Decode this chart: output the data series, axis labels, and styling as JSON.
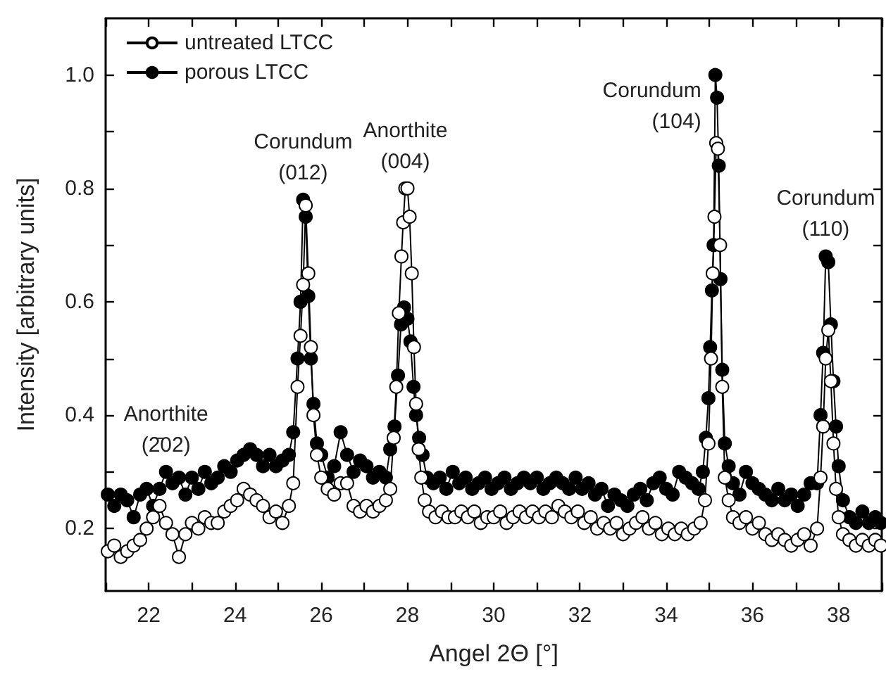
{
  "chart_data": {
    "type": "line",
    "xlabel": "Angel 2Θ [°]",
    "ylabel": "Intensity [arbitrary units]",
    "xlim": [
      21,
      39
    ],
    "ylim": [
      0.09,
      1.1
    ],
    "xticks": [
      {
        "value": 21,
        "label": null
      },
      22,
      {
        "value": 23,
        "label": null
      },
      24,
      {
        "value": 25,
        "label": null
      },
      26,
      {
        "value": 27,
        "label": null
      },
      28,
      {
        "value": 29,
        "label": null
      },
      30,
      {
        "value": 31,
        "label": null
      },
      32,
      {
        "value": 33,
        "label": null
      },
      34,
      {
        "value": 35,
        "label": null
      },
      36,
      {
        "value": 37,
        "label": null
      },
      38,
      {
        "value": 39,
        "label": null
      }
    ],
    "yticks": [
      0.2,
      {
        "value": 0.3,
        "label": null
      },
      0.4,
      {
        "value": 0.5,
        "label": null
      },
      0.6,
      {
        "value": 0.7,
        "label": null
      },
      0.8,
      {
        "value": 0.9,
        "label": null
      },
      {
        "value": 1.0,
        "label": "1.0"
      }
    ],
    "grid": false,
    "legend": "top left",
    "marker": "circle",
    "line_style": "solid",
    "annotations": [
      {
        "text": "Anorthite\n(2̄02)",
        "x": 22.4,
        "y": 0.3
      },
      {
        "text": "Corundum\n(012)",
        "x": 25.58,
        "y": 0.78
      },
      {
        "text": "Anorthite\n(004)",
        "x": 27.95,
        "y": 0.8
      },
      {
        "text": "Corundum\n(104)",
        "x": 35.14,
        "y": 1.0
      },
      {
        "text": "Corundum\n(110)",
        "x": 37.7,
        "y": 0.68
      }
    ],
    "series": [
      {
        "name": "untreated LTCC",
        "color": "#000000",
        "x": [
          21.05,
          21.2,
          21.35,
          21.5,
          21.65,
          21.8,
          21.95,
          22.1,
          22.25,
          22.4,
          22.55,
          22.7,
          22.85,
          23.0,
          23.15,
          23.3,
          23.45,
          23.6,
          23.75,
          23.9,
          24.05,
          24.2,
          24.35,
          24.5,
          24.65,
          24.8,
          24.95,
          25.1,
          25.25,
          25.35,
          25.45,
          25.52,
          25.58,
          25.64,
          25.7,
          25.76,
          25.82,
          25.9,
          26.0,
          26.15,
          26.3,
          26.45,
          26.6,
          26.75,
          26.9,
          27.05,
          27.2,
          27.35,
          27.5,
          27.6,
          27.68,
          27.74,
          27.8,
          27.86,
          27.9,
          27.95,
          28.0,
          28.05,
          28.1,
          28.15,
          28.2,
          28.26,
          28.32,
          28.4,
          28.5,
          28.65,
          28.8,
          28.95,
          29.1,
          29.25,
          29.4,
          29.55,
          29.7,
          29.85,
          30.0,
          30.15,
          30.3,
          30.45,
          30.6,
          30.75,
          30.9,
          31.05,
          31.2,
          31.35,
          31.5,
          31.65,
          31.8,
          31.95,
          32.1,
          32.25,
          32.4,
          32.55,
          32.7,
          32.85,
          33.0,
          33.15,
          33.3,
          33.45,
          33.6,
          33.75,
          33.9,
          34.05,
          34.2,
          34.35,
          34.5,
          34.65,
          34.8,
          34.9,
          34.98,
          35.04,
          35.08,
          35.12,
          35.16,
          35.2,
          35.25,
          35.3,
          35.36,
          35.45,
          35.55,
          35.7,
          35.85,
          36.0,
          36.15,
          36.3,
          36.45,
          36.6,
          36.75,
          36.9,
          37.05,
          37.2,
          37.35,
          37.5,
          37.58,
          37.64,
          37.7,
          37.76,
          37.82,
          37.88,
          37.94,
          38.0,
          38.1,
          38.25,
          38.4,
          38.55,
          38.7,
          38.85,
          38.98
        ],
        "values": [
          0.16,
          0.17,
          0.15,
          0.16,
          0.17,
          0.18,
          0.2,
          0.22,
          0.24,
          0.21,
          0.19,
          0.15,
          0.19,
          0.21,
          0.2,
          0.22,
          0.21,
          0.21,
          0.23,
          0.24,
          0.25,
          0.27,
          0.26,
          0.25,
          0.24,
          0.22,
          0.23,
          0.21,
          0.24,
          0.28,
          0.45,
          0.54,
          0.63,
          0.77,
          0.65,
          0.52,
          0.4,
          0.33,
          0.29,
          0.27,
          0.26,
          0.28,
          0.28,
          0.24,
          0.23,
          0.24,
          0.23,
          0.24,
          0.25,
          0.27,
          0.36,
          0.45,
          0.58,
          0.68,
          0.74,
          0.8,
          0.8,
          0.75,
          0.65,
          0.52,
          0.42,
          0.34,
          0.29,
          0.25,
          0.23,
          0.22,
          0.23,
          0.22,
          0.22,
          0.23,
          0.22,
          0.23,
          0.21,
          0.22,
          0.22,
          0.23,
          0.21,
          0.22,
          0.23,
          0.22,
          0.23,
          0.22,
          0.23,
          0.22,
          0.24,
          0.23,
          0.22,
          0.23,
          0.21,
          0.22,
          0.2,
          0.21,
          0.2,
          0.21,
          0.19,
          0.2,
          0.21,
          0.22,
          0.2,
          0.21,
          0.19,
          0.2,
          0.19,
          0.2,
          0.19,
          0.2,
          0.21,
          0.25,
          0.35,
          0.5,
          0.65,
          0.75,
          0.88,
          0.87,
          0.7,
          0.45,
          0.29,
          0.25,
          0.22,
          0.21,
          0.22,
          0.2,
          0.21,
          0.19,
          0.18,
          0.19,
          0.18,
          0.17,
          0.18,
          0.19,
          0.17,
          0.2,
          0.29,
          0.38,
          0.5,
          0.55,
          0.46,
          0.35,
          0.27,
          0.22,
          0.19,
          0.18,
          0.17,
          0.18,
          0.17,
          0.18,
          0.17
        ]
      },
      {
        "name": "porous LTCC",
        "color": "#000000",
        "x": [
          21.05,
          21.2,
          21.35,
          21.5,
          21.65,
          21.8,
          21.95,
          22.1,
          22.25,
          22.4,
          22.55,
          22.7,
          22.85,
          23.0,
          23.15,
          23.3,
          23.45,
          23.6,
          23.75,
          23.9,
          24.05,
          24.2,
          24.35,
          24.5,
          24.65,
          24.8,
          24.95,
          25.1,
          25.25,
          25.35,
          25.45,
          25.52,
          25.58,
          25.64,
          25.7,
          25.76,
          25.82,
          25.9,
          26.0,
          26.15,
          26.3,
          26.45,
          26.6,
          26.75,
          26.9,
          27.05,
          27.2,
          27.35,
          27.5,
          27.6,
          27.7,
          27.78,
          27.85,
          27.92,
          28.0,
          28.07,
          28.14,
          28.2,
          28.27,
          28.35,
          28.45,
          28.6,
          28.75,
          28.9,
          29.05,
          29.2,
          29.35,
          29.5,
          29.65,
          29.8,
          29.95,
          30.1,
          30.25,
          30.4,
          30.55,
          30.7,
          30.85,
          31.0,
          31.15,
          31.3,
          31.45,
          31.6,
          31.75,
          31.9,
          32.05,
          32.2,
          32.35,
          32.5,
          32.65,
          32.8,
          32.95,
          33.1,
          33.25,
          33.4,
          33.55,
          33.7,
          33.85,
          34.0,
          34.15,
          34.3,
          34.45,
          34.6,
          34.75,
          34.85,
          34.92,
          34.98,
          35.02,
          35.06,
          35.1,
          35.14,
          35.18,
          35.22,
          35.26,
          35.3,
          35.36,
          35.45,
          35.55,
          35.7,
          35.85,
          36.0,
          36.15,
          36.3,
          36.45,
          36.6,
          36.75,
          36.9,
          37.05,
          37.2,
          37.35,
          37.5,
          37.58,
          37.64,
          37.7,
          37.76,
          37.82,
          37.88,
          37.94,
          38.0,
          38.1,
          38.25,
          38.4,
          38.55,
          38.7,
          38.85,
          38.98
        ],
        "values": [
          0.26,
          0.24,
          0.26,
          0.25,
          0.22,
          0.26,
          0.27,
          0.24,
          0.27,
          0.3,
          0.28,
          0.29,
          0.26,
          0.29,
          0.27,
          0.3,
          0.28,
          0.29,
          0.31,
          0.3,
          0.32,
          0.33,
          0.34,
          0.33,
          0.31,
          0.33,
          0.31,
          0.32,
          0.33,
          0.37,
          0.5,
          0.6,
          0.78,
          0.75,
          0.61,
          0.5,
          0.42,
          0.35,
          0.33,
          0.29,
          0.31,
          0.37,
          0.33,
          0.3,
          0.32,
          0.31,
          0.29,
          0.3,
          0.29,
          0.34,
          0.38,
          0.47,
          0.56,
          0.59,
          0.57,
          0.53,
          0.45,
          0.4,
          0.36,
          0.33,
          0.29,
          0.28,
          0.29,
          0.27,
          0.3,
          0.28,
          0.29,
          0.27,
          0.28,
          0.29,
          0.27,
          0.28,
          0.29,
          0.27,
          0.28,
          0.29,
          0.28,
          0.29,
          0.27,
          0.28,
          0.29,
          0.28,
          0.27,
          0.29,
          0.27,
          0.28,
          0.26,
          0.27,
          0.24,
          0.26,
          0.25,
          0.24,
          0.26,
          0.27,
          0.25,
          0.28,
          0.29,
          0.27,
          0.26,
          0.3,
          0.29,
          0.28,
          0.27,
          0.3,
          0.36,
          0.43,
          0.52,
          0.62,
          0.7,
          1.0,
          0.96,
          0.84,
          0.64,
          0.48,
          0.35,
          0.31,
          0.28,
          0.26,
          0.3,
          0.28,
          0.27,
          0.26,
          0.25,
          0.27,
          0.25,
          0.26,
          0.24,
          0.26,
          0.28,
          0.28,
          0.4,
          0.51,
          0.68,
          0.67,
          0.56,
          0.46,
          0.38,
          0.31,
          0.25,
          0.22,
          0.21,
          0.23,
          0.21,
          0.22,
          0.21
        ]
      }
    ]
  }
}
